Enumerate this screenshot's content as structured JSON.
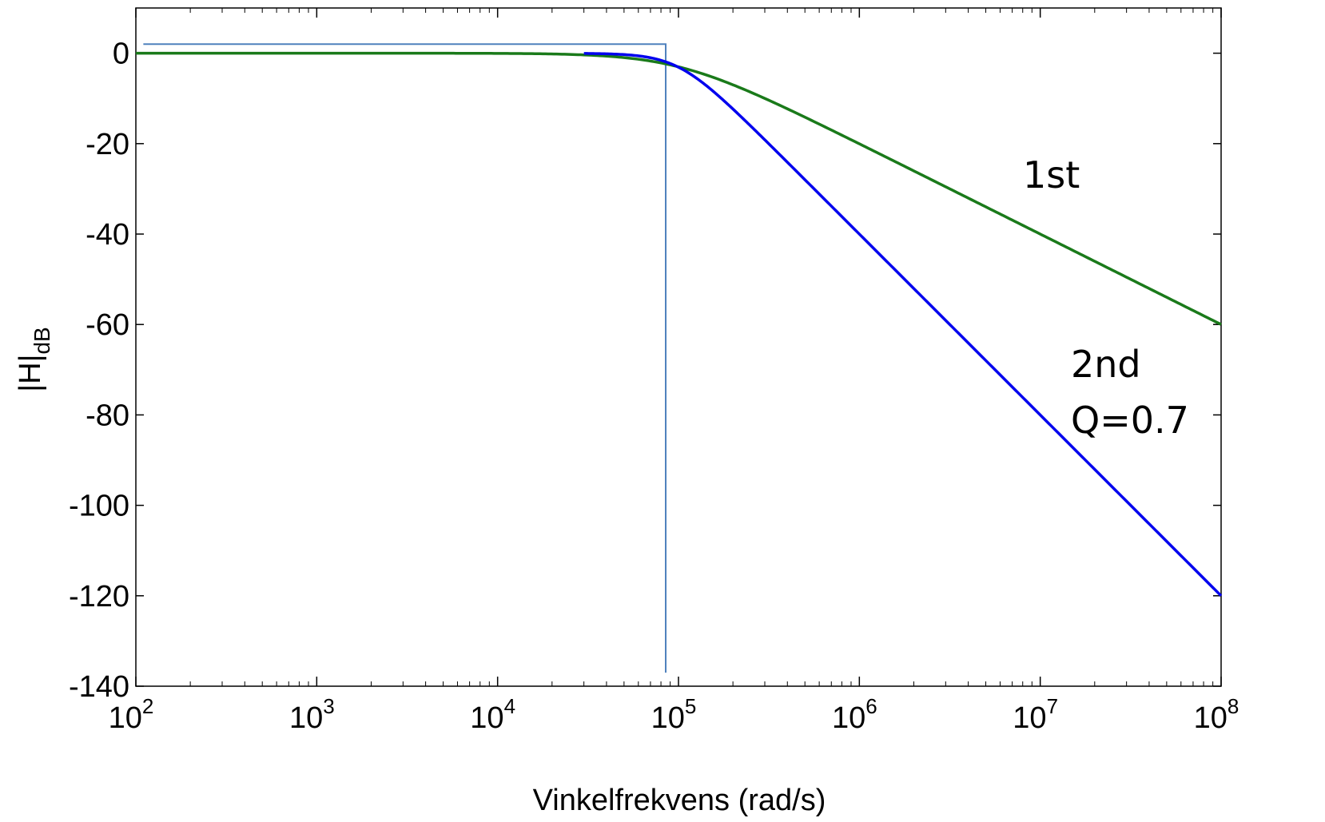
{
  "chart_data": {
    "type": "line",
    "title": "",
    "xlabel": "Vinkelfrekvens (rad/s)",
    "ylabel": {
      "main": "|H|",
      "subscript": "dB"
    },
    "x_scale": "log",
    "xlim": [
      100,
      100000000
    ],
    "ylim": [
      -140,
      10
    ],
    "x_ticks": [
      {
        "value": 100,
        "base": "10",
        "exp": "2"
      },
      {
        "value": 1000,
        "base": "10",
        "exp": "3"
      },
      {
        "value": 10000,
        "base": "10",
        "exp": "4"
      },
      {
        "value": 100000,
        "base": "10",
        "exp": "5"
      },
      {
        "value": 1000000,
        "base": "10",
        "exp": "6"
      },
      {
        "value": 10000000,
        "base": "10",
        "exp": "7"
      },
      {
        "value": 100000000,
        "base": "10",
        "exp": "8"
      }
    ],
    "y_ticks": [
      {
        "value": 0,
        "label": "0"
      },
      {
        "value": -20,
        "label": "-20"
      },
      {
        "value": -40,
        "label": "-40"
      },
      {
        "value": -60,
        "label": "-60"
      },
      {
        "value": -80,
        "label": "-80"
      },
      {
        "value": -100,
        "label": "-100"
      },
      {
        "value": -120,
        "label": "-120"
      },
      {
        "value": -140,
        "label": "-140"
      }
    ],
    "grid": false,
    "series": [
      {
        "label_lines": [
          "1st"
        ],
        "color": "#1a7a1a",
        "order": 1,
        "cutoff": 100000,
        "x_range": [
          100,
          100000000
        ]
      },
      {
        "label_lines": [
          "2nd",
          "Q=0.7"
        ],
        "color": "#0000ee",
        "order": 2,
        "cutoff": 100000,
        "q": 0.7,
        "x_range": [
          30000,
          100000000
        ]
      }
    ],
    "marker_box": {
      "color": "#4f81bd",
      "x": [
        110,
        85000
      ],
      "y": [
        2,
        -137
      ]
    }
  }
}
